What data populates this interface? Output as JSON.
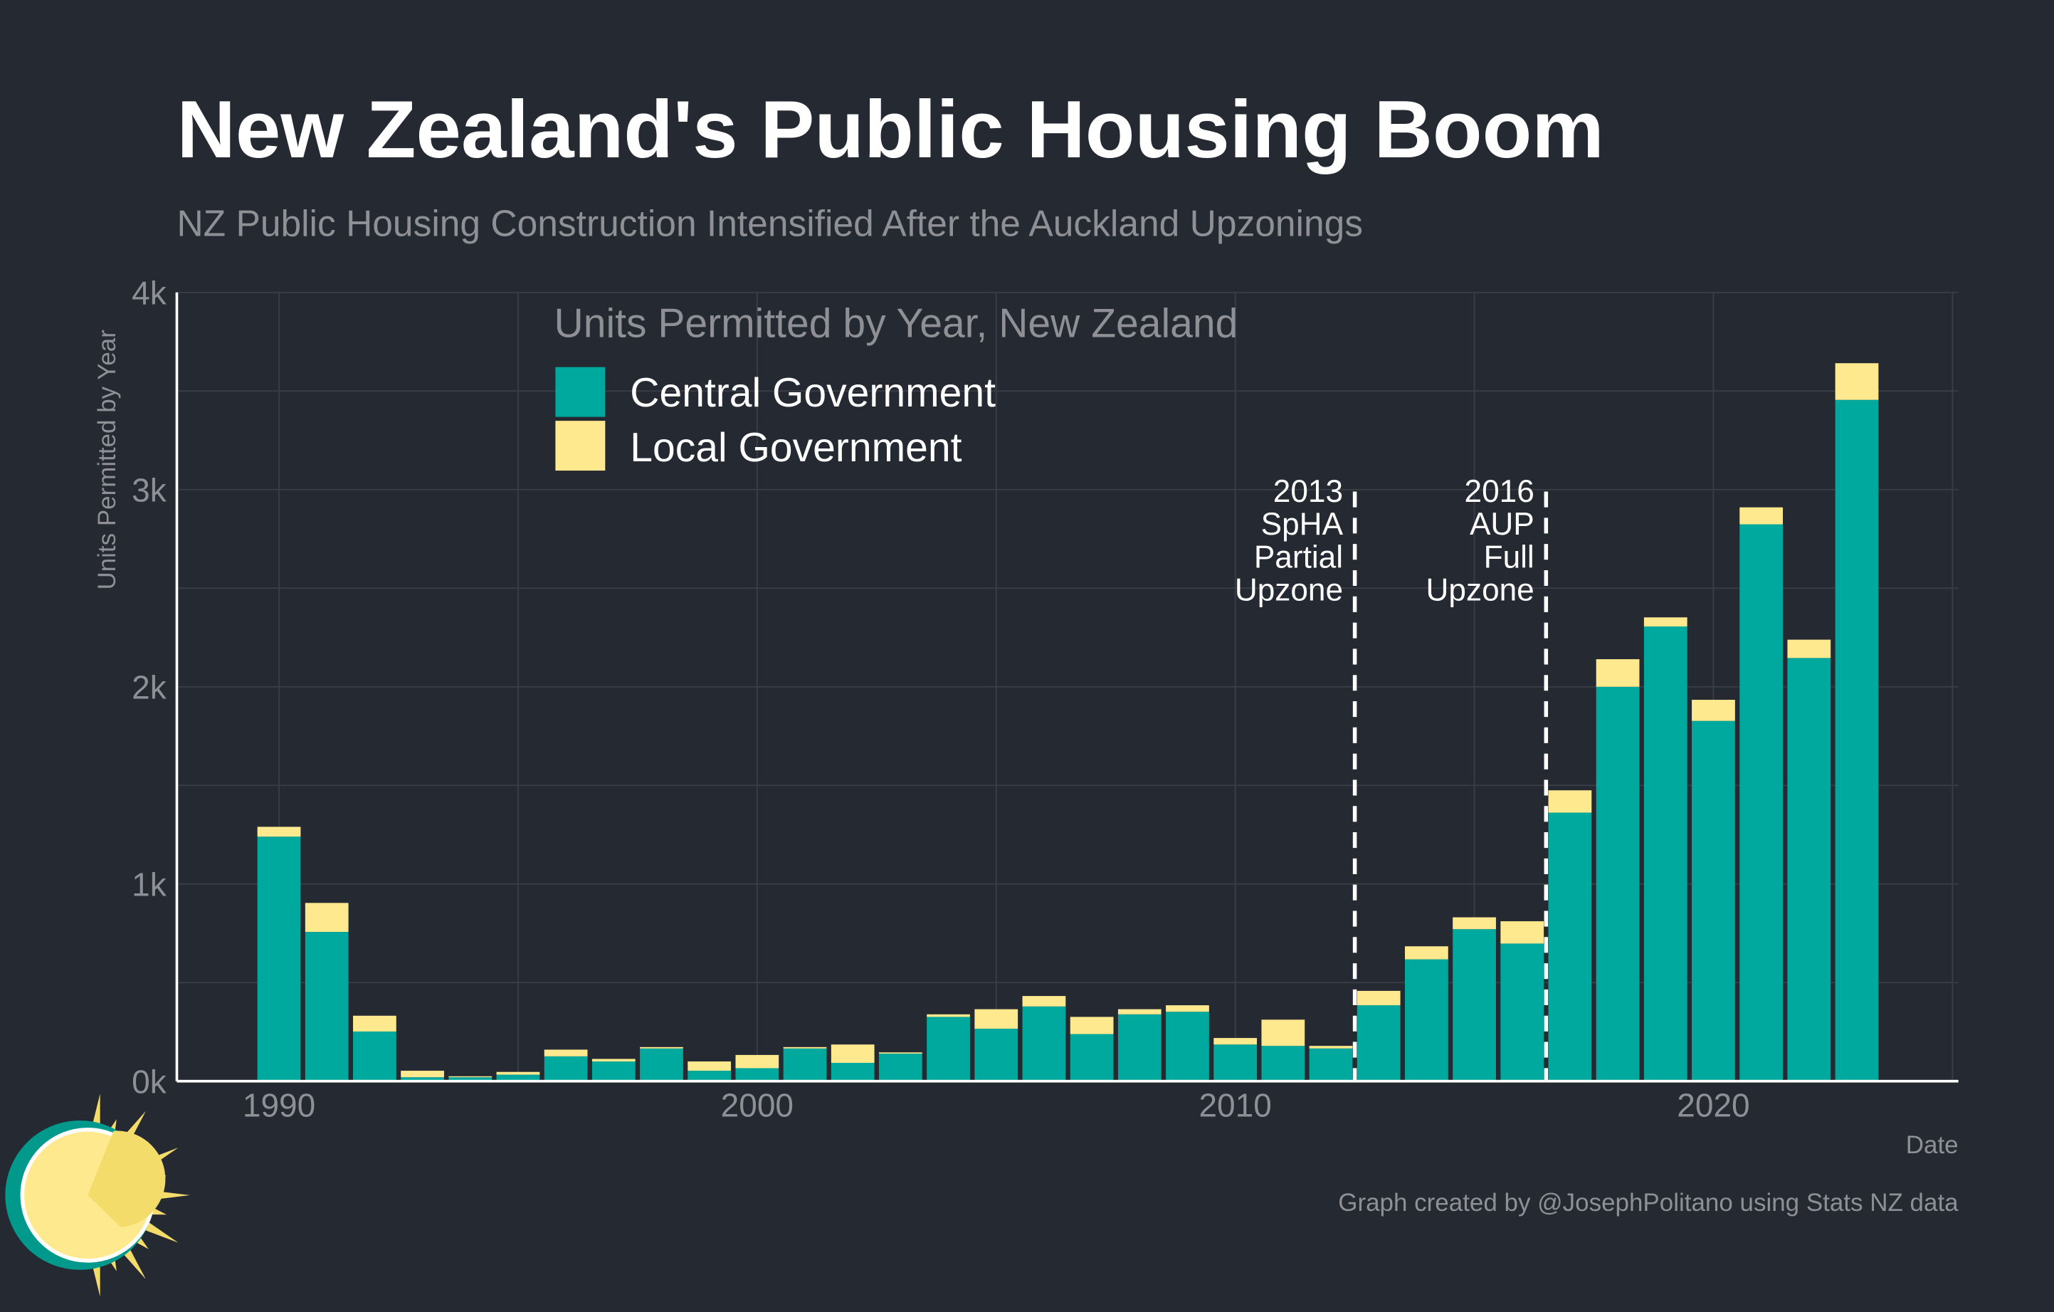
{
  "chart_data": {
    "type": "bar",
    "stacked": true,
    "title": "New Zealand's Public Housing Boom",
    "subtitle": "NZ Public Housing Construction Intensified After the Auckland Upzonings",
    "xlabel": "Date",
    "ylabel": "Units Permitted by Year",
    "legend_title": "Units Permitted by Year, New Zealand",
    "legend_placement": "top-left",
    "grid": true,
    "xlim": [
      1988,
      2025
    ],
    "ylim": [
      0,
      4000
    ],
    "x_ticks": [
      1990,
      2000,
      2010,
      2020
    ],
    "x_tick_labels": [
      "1990",
      "2000",
      "2010",
      "2020"
    ],
    "y_ticks": [
      0,
      1000,
      2000,
      3000,
      4000
    ],
    "y_tick_labels": [
      "0k",
      "1k",
      "2k",
      "3k",
      "4k"
    ],
    "categories": [
      1990,
      1991,
      1992,
      1993,
      1994,
      1995,
      1996,
      1997,
      1998,
      1999,
      2000,
      2001,
      2002,
      2003,
      2004,
      2005,
      2006,
      2007,
      2008,
      2009,
      2010,
      2011,
      2012,
      2013,
      2014,
      2015,
      2016,
      2017,
      2018,
      2019,
      2020,
      2021,
      2022,
      2023
    ],
    "series": [
      {
        "name": "Central Government",
        "color": "#00A99D",
        "values": [
          1240,
          757,
          252,
          20,
          20,
          33,
          126,
          100,
          166,
          53,
          66,
          166,
          93,
          140,
          326,
          266,
          379,
          239,
          339,
          352,
          186,
          179,
          166,
          385,
          618,
          771,
          698,
          1362,
          2000,
          2306,
          1827,
          2824,
          2146,
          3455
        ]
      },
      {
        "name": "Local Government",
        "color": "#FFE98F",
        "values": [
          50,
          147,
          80,
          33,
          5,
          14,
          34,
          13,
          7,
          47,
          67,
          7,
          93,
          6,
          13,
          99,
          53,
          87,
          26,
          33,
          33,
          133,
          13,
          73,
          66,
          60,
          113,
          113,
          140,
          46,
          107,
          86,
          93,
          186
        ]
      }
    ],
    "annotations": [
      {
        "x": 2012.5,
        "lines": [
          "2013",
          "SpHA",
          "Partial",
          "Upzone"
        ]
      },
      {
        "x": 2016.5,
        "lines": [
          "2016",
          "AUP",
          "Full",
          "Upzone"
        ]
      }
    ],
    "caption": "Graph created by @JosephPolitano using Stats NZ data"
  },
  "colors": {
    "background": "#252932",
    "central": "#00A99D",
    "local": "#FFE98F",
    "text_muted": "#8E9096"
  }
}
